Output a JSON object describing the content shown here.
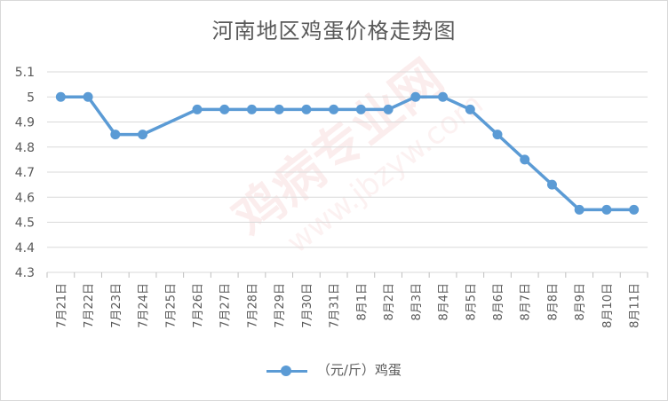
{
  "chart_data": {
    "type": "line",
    "title": "河南地区鸡蛋价格走势图",
    "categories": [
      "7月21日",
      "7月22日",
      "7月23日",
      "7月24日",
      "7月25日",
      "7月26日",
      "7月27日",
      "7月28日",
      "7月29日",
      "7月30日",
      "7月31日",
      "8月1日",
      "8月2日",
      "8月3日",
      "8月4日",
      "8月5日",
      "8月6日",
      "8月7日",
      "8月8日",
      "8月9日",
      "8月10日",
      "8月11日"
    ],
    "series": [
      {
        "name": "（元/斤）鸡蛋",
        "values": [
          5.0,
          5.0,
          4.85,
          4.85,
          null,
          4.95,
          4.95,
          4.95,
          4.95,
          4.95,
          4.95,
          4.95,
          4.95,
          5.0,
          5.0,
          4.95,
          4.85,
          4.75,
          4.65,
          4.55,
          4.55,
          4.55
        ]
      }
    ],
    "ylim": [
      4.3,
      5.1
    ],
    "yticks": [
      "4.3",
      "4.4",
      "4.5",
      "4.6",
      "4.7",
      "4.8",
      "4.9",
      "5",
      "5.1"
    ],
    "grid": true,
    "legend_position": "bottom",
    "line_color": "#5b9bd5"
  },
  "watermark": {
    "main": "鸡病专业网",
    "url": "www.jbzyw.com"
  }
}
